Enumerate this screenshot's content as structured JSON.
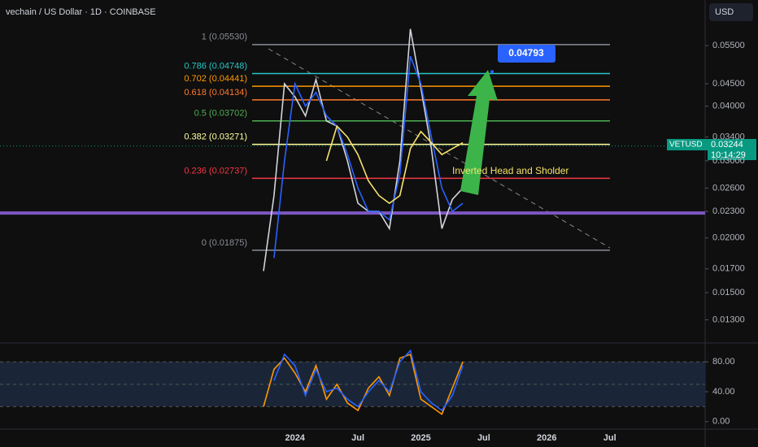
{
  "chart_data": [
    {
      "type": "line",
      "title": "vechain / US Dollar · 1D · COINBASE",
      "currency_button": "USD",
      "log_scale": true,
      "categories": [
        null,
        null,
        null,
        "2024",
        null,
        null,
        null,
        null,
        null,
        "Jul",
        null,
        null,
        null,
        null,
        null,
        "2025",
        null,
        null,
        null,
        null,
        null,
        "Jul",
        null,
        null,
        null,
        null,
        null,
        "2026",
        null,
        null,
        null,
        null,
        null,
        "Jul",
        null
      ],
      "series": [
        {
          "color": "#d1d4dc",
          "values": [
            0.0168,
            0.025,
            0.045,
            0.042,
            0.038,
            0.046,
            0.037,
            0.036,
            0.03,
            0.024,
            0.023,
            0.023,
            0.021,
            0.03,
            0.06,
            0.044,
            0.032,
            0.021,
            0.0245,
            0.026,
            null,
            null,
            null,
            null,
            null,
            null,
            null,
            null,
            null,
            null,
            null,
            null,
            null,
            null,
            null
          ]
        },
        {
          "color": "#2962ff",
          "values": [
            null,
            0.018,
            0.03,
            0.045,
            0.04,
            0.043,
            0.038,
            0.036,
            0.031,
            0.026,
            0.023,
            0.023,
            0.022,
            0.028,
            0.052,
            0.045,
            0.034,
            0.026,
            0.023,
            0.024,
            null,
            null,
            null,
            null,
            null,
            null,
            null,
            null,
            null,
            null,
            null,
            null,
            null,
            null,
            null
          ]
        },
        {
          "color": "#f7e26b",
          "values": [
            null,
            null,
            null,
            null,
            null,
            null,
            0.03,
            0.036,
            0.034,
            0.031,
            0.027,
            0.025,
            0.024,
            0.025,
            0.032,
            0.035,
            0.033,
            0.031,
            0.032,
            0.033,
            null,
            null,
            null,
            null,
            null,
            null,
            null,
            null,
            null,
            null,
            null,
            null,
            null,
            null,
            null
          ]
        }
      ],
      "ylim": [
        0.01161,
        0.0699
      ],
      "yticks": [
        {
          "value": 0.055,
          "label": "0.05500"
        },
        {
          "value": 0.045,
          "label": "0.04500"
        },
        {
          "value": 0.04,
          "label": "0.04000"
        },
        {
          "value": 0.034,
          "label": "0.03400"
        },
        {
          "value": 0.03,
          "label": "0.03000"
        },
        {
          "value": 0.026,
          "label": "0.02600"
        },
        {
          "value": 0.023,
          "label": "0.02300"
        },
        {
          "value": 0.02,
          "label": "0.02000"
        },
        {
          "value": 0.017,
          "label": "0.01700"
        },
        {
          "value": 0.015,
          "label": "0.01500"
        },
        {
          "value": 0.013,
          "label": "0.01300"
        }
      ],
      "fib_levels": [
        {
          "value": 0.0553,
          "label": "1 (0.05530)",
          "color": "#8a8d96"
        },
        {
          "value": 0.04748,
          "label": "0.786 (0.04748)",
          "color": "#26c6c6"
        },
        {
          "value": 0.04441,
          "label": "0.702 (0.04441)",
          "color": "#ff9800"
        },
        {
          "value": 0.04134,
          "label": "0.618 (0.04134)",
          "color": "#ff7a2f"
        },
        {
          "value": 0.03702,
          "label": "0.5 (0.03702)",
          "color": "#4caf50"
        },
        {
          "value": 0.03271,
          "label": "0.382 (0.03271)",
          "color": "#ffff9e"
        },
        {
          "value": 0.02737,
          "label": "0.236 (0.02737)",
          "color": "#f23645"
        },
        {
          "value": 0.01875,
          "label": "0 (0.01875)",
          "color": "#8a8d96"
        }
      ],
      "support_line": 0.0228,
      "target": 0.04793,
      "annotation": "Inverted Head and Sholder",
      "symbol": "VETUSD",
      "last_price": 0.03244,
      "countdown": "10:14:29"
    },
    {
      "type": "line",
      "series": [
        {
          "color": "#ff9800",
          "values": [
            20,
            70,
            85,
            65,
            40,
            75,
            30,
            50,
            25,
            15,
            45,
            60,
            35,
            85,
            90,
            30,
            20,
            10,
            45,
            80,
            null,
            null,
            null,
            null,
            null,
            null,
            null,
            null,
            null,
            null,
            null,
            null,
            null,
            null,
            null
          ]
        },
        {
          "color": "#2962ff",
          "values": [
            null,
            55,
            90,
            75,
            35,
            70,
            40,
            45,
            30,
            20,
            40,
            55,
            40,
            80,
            95,
            40,
            25,
            15,
            35,
            75,
            null,
            null,
            null,
            null,
            null,
            null,
            null,
            null,
            null,
            null,
            null,
            null,
            null,
            null,
            null
          ]
        }
      ],
      "ylim": [
        -10,
        102
      ],
      "yticks": [
        {
          "value": 80,
          "label": "80.00"
        },
        {
          "value": 40,
          "label": "40.00"
        },
        {
          "value": 0,
          "label": "0.00"
        }
      ],
      "reference_lines": [
        80,
        50,
        20
      ]
    }
  ]
}
